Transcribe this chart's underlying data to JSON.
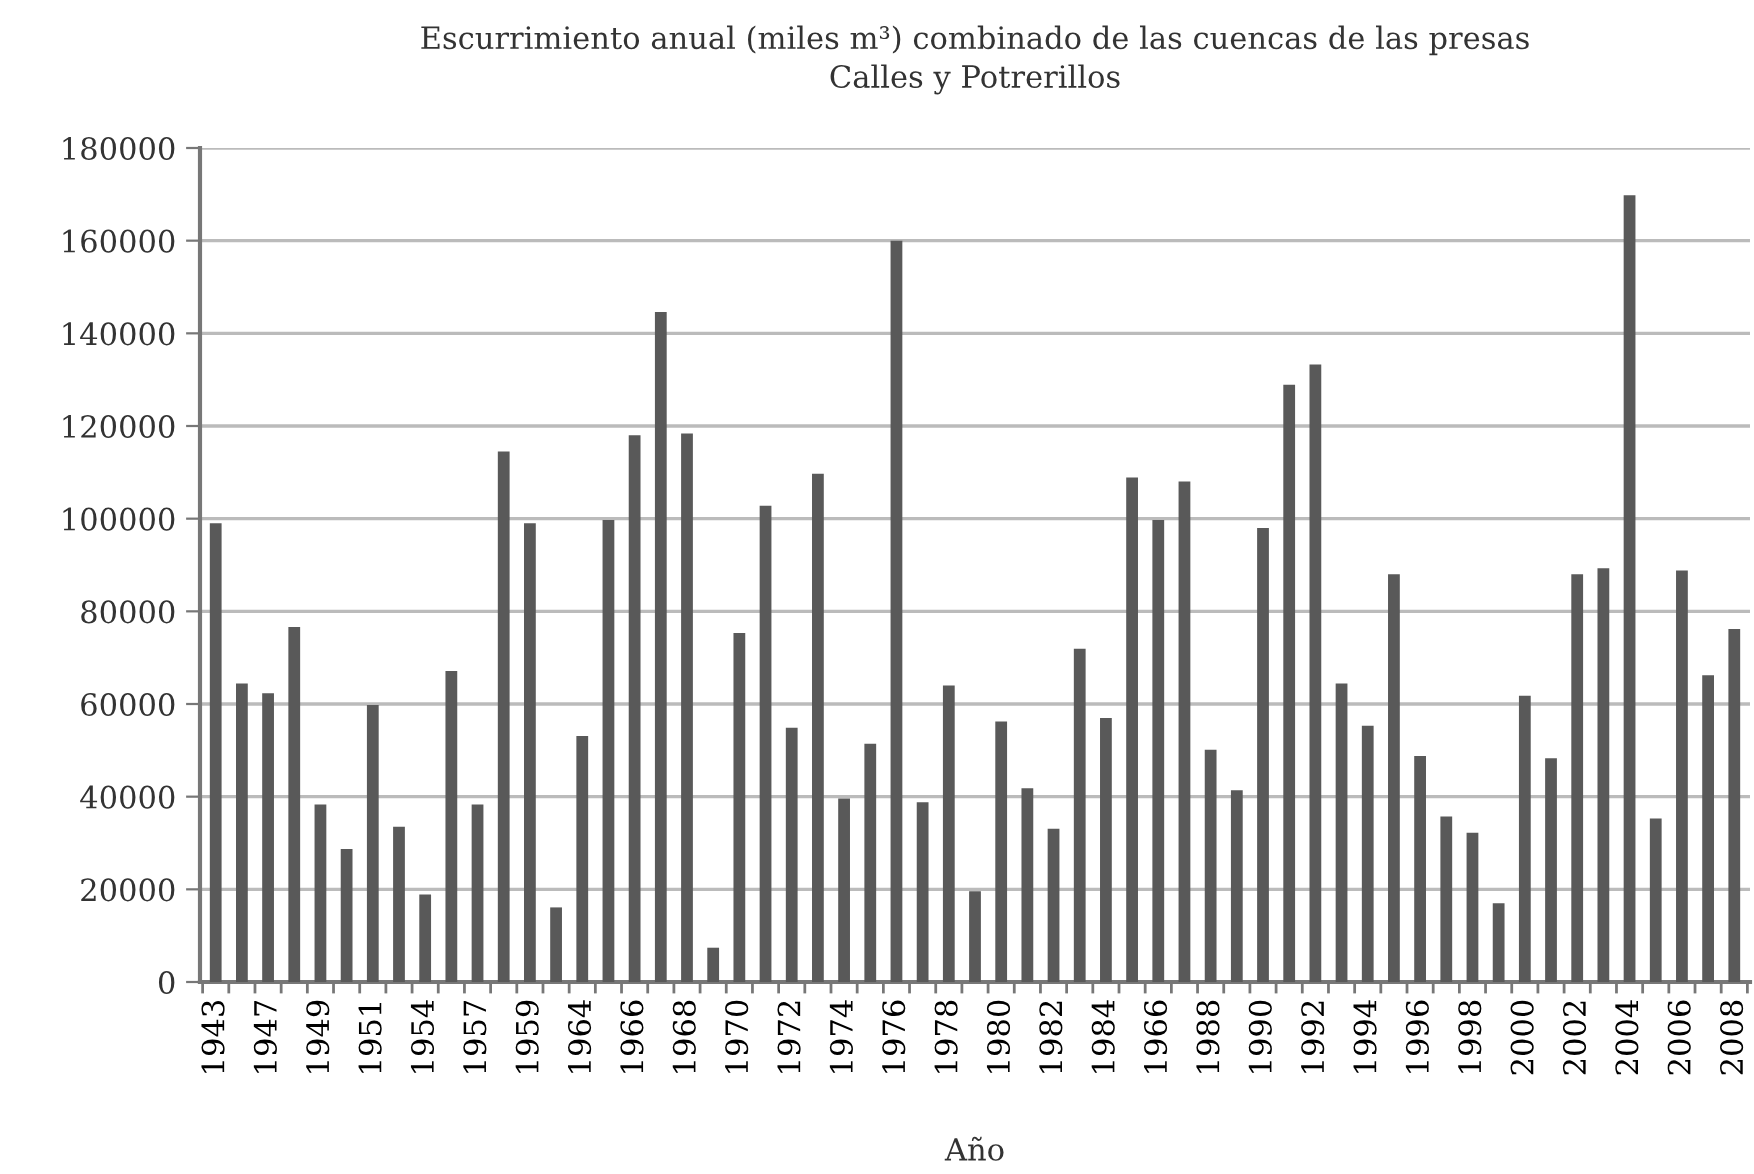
{
  "chart_data": {
    "type": "bar",
    "title": "Escurrimiento anual (miles m³) combinado de las cuencas de las presas\nCalles y Potrerillos",
    "xlabel": "Año",
    "categories": [
      "1943",
      null,
      "1947",
      null,
      "1949",
      null,
      "1951",
      null,
      "1954",
      null,
      "1957",
      null,
      "1959",
      null,
      "1964",
      null,
      "1966",
      null,
      "1968",
      null,
      "1970",
      null,
      "1972",
      null,
      "1974",
      null,
      "1976",
      null,
      "1978",
      null,
      "1980",
      null,
      "1982",
      null,
      "1984",
      null,
      "1966",
      null,
      "1988",
      null,
      "1990",
      null,
      "1992",
      null,
      "1994",
      null,
      "1996",
      null,
      "1998",
      null,
      "2000",
      null,
      "2002",
      null,
      "2004",
      null,
      "2006",
      null,
      "2008"
    ],
    "values": [
      99000,
      64400,
      62300,
      76600,
      38300,
      28700,
      59800,
      33500,
      18900,
      67100,
      38300,
      114500,
      99000,
      16100,
      53100,
      99700,
      118000,
      144600,
      118400,
      7400,
      75300,
      102800,
      54900,
      109700,
      39600,
      51400,
      160000,
      38800,
      64000,
      19600,
      56200,
      41800,
      33100,
      71900,
      57000,
      108900,
      99700,
      108000,
      50100,
      41400,
      98000,
      128900,
      133300,
      64400,
      55300,
      88000,
      48800,
      35700,
      32200,
      17000,
      61800,
      48300,
      88000,
      89300,
      169800,
      35300,
      88800,
      66200,
      76200
    ],
    "color": "#595959",
    "ylim": [
      0,
      180000
    ],
    "yticks": [
      0,
      20000,
      40000,
      60000,
      80000,
      100000,
      120000,
      140000,
      160000,
      180000
    ],
    "grid": "y",
    "legend": false
  }
}
